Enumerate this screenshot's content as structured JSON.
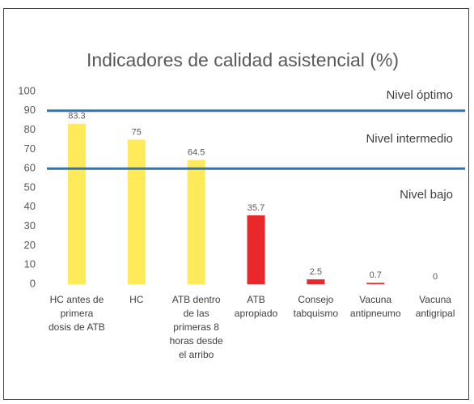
{
  "chart_data": {
    "type": "bar",
    "title": "Indicadores de calidad asistencial (%)",
    "categories": [
      "HC antes de primera dosis de ATB",
      "HC",
      "ATB dentro de las primeras 8 horas desde el arribo",
      "ATB apropiado",
      "Consejo tabquismo",
      "Vacuna antipneumo",
      "Vacuna antigripal"
    ],
    "values": [
      83.3,
      75,
      64.5,
      35.7,
      2.5,
      0.7,
      0
    ],
    "colors": [
      "#ffeb5a",
      "#ffeb5a",
      "#ffeb5a",
      "#e8282b",
      "#e8282b",
      "#e8282b",
      "#e8282b"
    ],
    "ylim": [
      0,
      100
    ],
    "yticks": [
      0,
      10,
      20,
      30,
      40,
      50,
      60,
      70,
      80,
      90,
      100
    ],
    "grid": false,
    "reference_lines": [
      {
        "value": 90,
        "color": "#2e75b6"
      },
      {
        "value": 60,
        "color": "#2e75b6"
      }
    ],
    "annotations": [
      "Nivel óptimo",
      "Nivel intermedio",
      "Nivel bajo"
    ]
  }
}
